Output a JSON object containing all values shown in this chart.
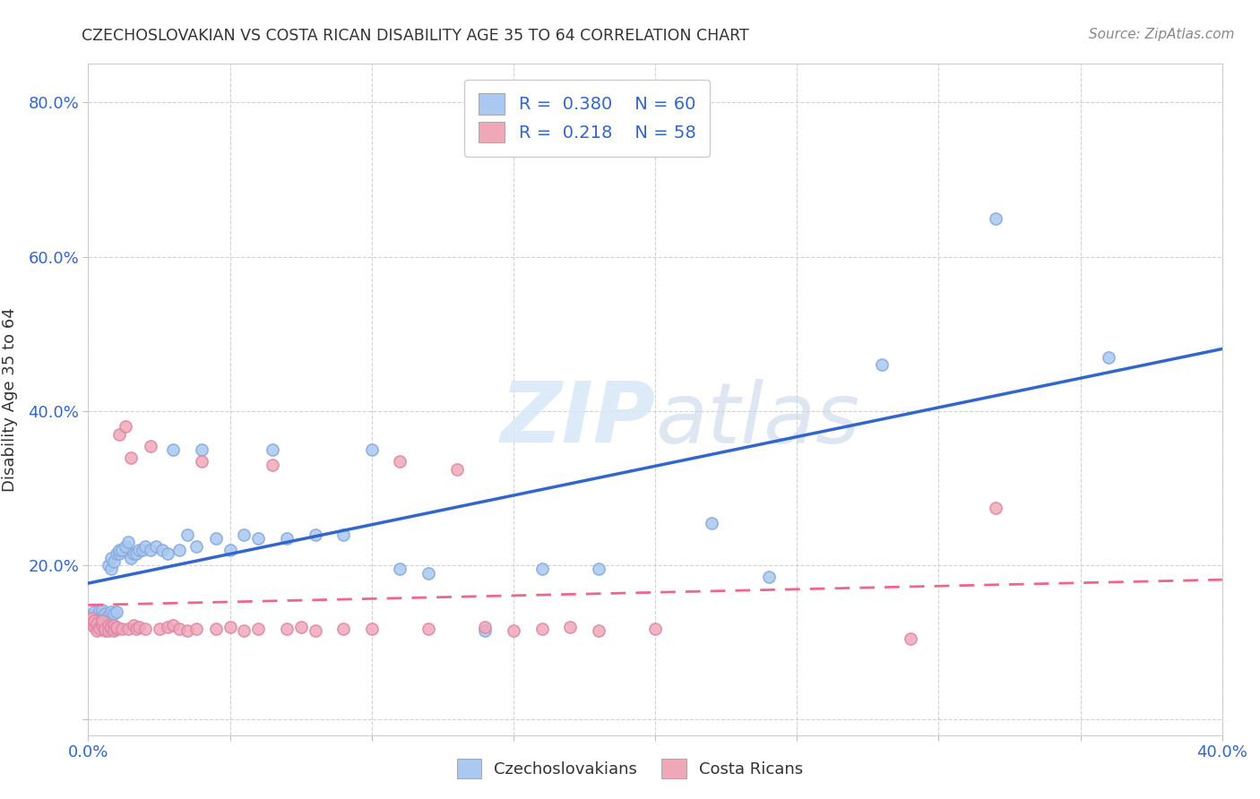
{
  "title": "CZECHOSLOVAKIAN VS COSTA RICAN DISABILITY AGE 35 TO 64 CORRELATION CHART",
  "source": "Source: ZipAtlas.com",
  "ylabel": "Disability Age 35 to 64",
  "xlim": [
    0.0,
    0.4
  ],
  "ylim": [
    -0.02,
    0.85
  ],
  "blue_R": 0.38,
  "blue_N": 60,
  "pink_R": 0.218,
  "pink_N": 58,
  "blue_color": "#aac8f0",
  "pink_color": "#f0a8b8",
  "blue_line_color": "#3366cc",
  "pink_line_color": "#ee6688",
  "watermark_color": "#d8e8f8",
  "blue_scatter_x": [
    0.001,
    0.002,
    0.002,
    0.003,
    0.003,
    0.004,
    0.004,
    0.005,
    0.005,
    0.005,
    0.006,
    0.006,
    0.007,
    0.007,
    0.008,
    0.008,
    0.008,
    0.009,
    0.009,
    0.01,
    0.01,
    0.011,
    0.011,
    0.012,
    0.013,
    0.014,
    0.015,
    0.016,
    0.017,
    0.018,
    0.019,
    0.02,
    0.022,
    0.024,
    0.026,
    0.028,
    0.03,
    0.032,
    0.035,
    0.038,
    0.04,
    0.045,
    0.05,
    0.055,
    0.06,
    0.065,
    0.07,
    0.08,
    0.09,
    0.1,
    0.11,
    0.12,
    0.14,
    0.16,
    0.18,
    0.22,
    0.24,
    0.28,
    0.32,
    0.36
  ],
  "blue_scatter_y": [
    0.135,
    0.128,
    0.14,
    0.13,
    0.122,
    0.138,
    0.142,
    0.128,
    0.135,
    0.142,
    0.138,
    0.13,
    0.2,
    0.135,
    0.21,
    0.195,
    0.14,
    0.205,
    0.138,
    0.215,
    0.14,
    0.215,
    0.22,
    0.22,
    0.225,
    0.23,
    0.21,
    0.215,
    0.215,
    0.22,
    0.22,
    0.225,
    0.22,
    0.225,
    0.22,
    0.215,
    0.35,
    0.22,
    0.24,
    0.225,
    0.35,
    0.235,
    0.22,
    0.24,
    0.235,
    0.35,
    0.235,
    0.24,
    0.24,
    0.35,
    0.195,
    0.19,
    0.115,
    0.195,
    0.195,
    0.255,
    0.185,
    0.46,
    0.65,
    0.47
  ],
  "pink_scatter_x": [
    0.001,
    0.001,
    0.002,
    0.002,
    0.003,
    0.003,
    0.004,
    0.004,
    0.005,
    0.005,
    0.006,
    0.006,
    0.007,
    0.007,
    0.008,
    0.008,
    0.009,
    0.009,
    0.01,
    0.01,
    0.011,
    0.012,
    0.013,
    0.014,
    0.015,
    0.016,
    0.017,
    0.018,
    0.02,
    0.022,
    0.025,
    0.028,
    0.03,
    0.032,
    0.035,
    0.038,
    0.04,
    0.045,
    0.05,
    0.055,
    0.06,
    0.065,
    0.07,
    0.075,
    0.08,
    0.09,
    0.1,
    0.11,
    0.12,
    0.13,
    0.14,
    0.15,
    0.16,
    0.17,
    0.18,
    0.2,
    0.29,
    0.32
  ],
  "pink_scatter_y": [
    0.125,
    0.132,
    0.12,
    0.128,
    0.115,
    0.125,
    0.12,
    0.118,
    0.122,
    0.128,
    0.115,
    0.118,
    0.122,
    0.115,
    0.118,
    0.12,
    0.122,
    0.115,
    0.118,
    0.12,
    0.37,
    0.118,
    0.38,
    0.118,
    0.34,
    0.122,
    0.118,
    0.12,
    0.118,
    0.355,
    0.118,
    0.12,
    0.122,
    0.118,
    0.115,
    0.118,
    0.335,
    0.118,
    0.12,
    0.115,
    0.118,
    0.33,
    0.118,
    0.12,
    0.115,
    0.118,
    0.118,
    0.335,
    0.118,
    0.325,
    0.12,
    0.115,
    0.118,
    0.12,
    0.115,
    0.118,
    0.105,
    0.275
  ]
}
